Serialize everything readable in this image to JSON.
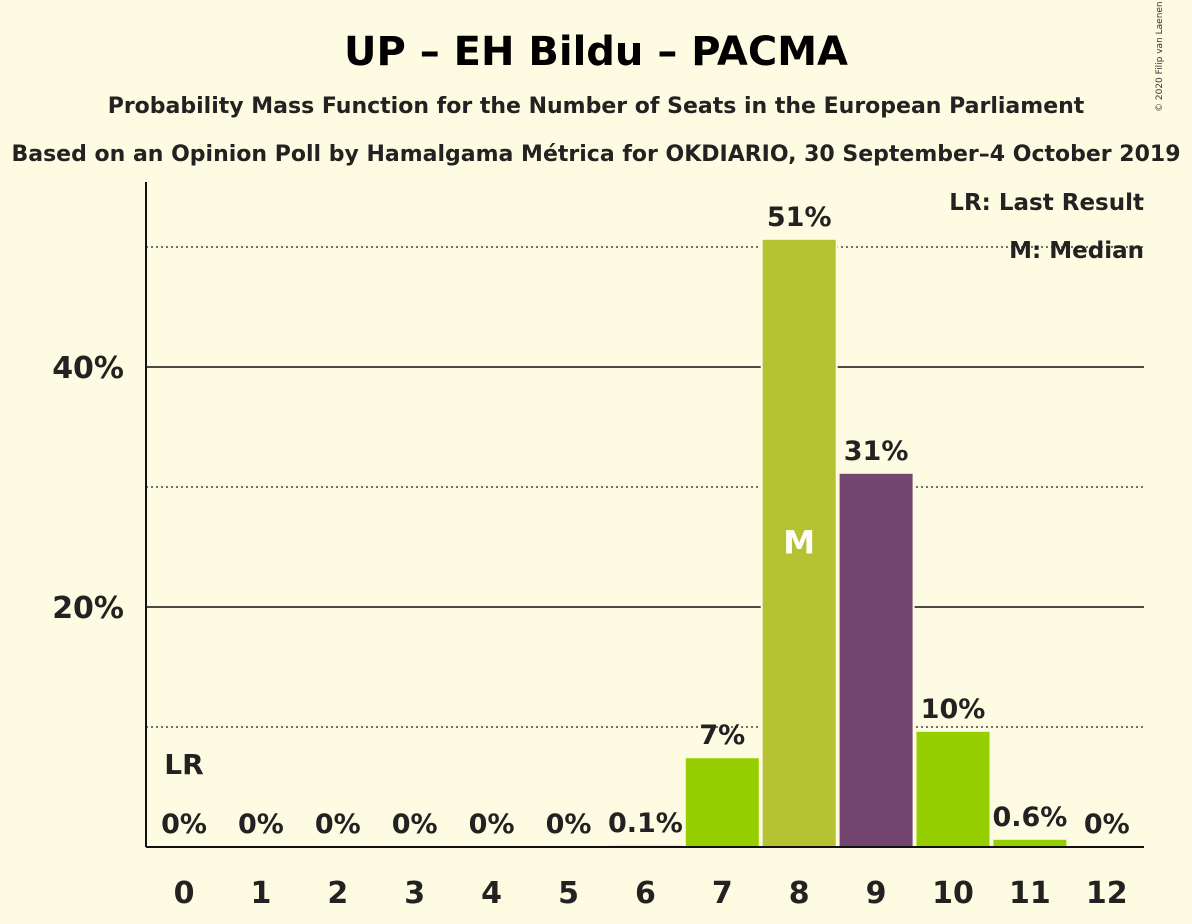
{
  "chart_data": {
    "type": "bar",
    "title": "UP – EH Bildu – PACMA",
    "subtitle": "Probability Mass Function for the Number of Seats in the European Parliament",
    "source": "Based on an Opinion Poll by Hamalgama Métrica for OKDIARIO, 30 September–4 October 2019",
    "copyright": "© 2020 Filip van Laenen",
    "categories": [
      "0",
      "1",
      "2",
      "3",
      "4",
      "5",
      "6",
      "7",
      "8",
      "9",
      "10",
      "11",
      "12"
    ],
    "values": [
      0,
      0,
      0,
      0,
      0,
      0,
      0.1,
      7.4,
      50.6,
      31.1,
      9.6,
      0.6,
      0
    ],
    "labels": [
      "0%",
      "0%",
      "0%",
      "0%",
      "0%",
      "0%",
      "0.1%",
      "7%",
      "51%",
      "31%",
      "10%",
      "0.6%",
      "0%"
    ],
    "bar_colors": [
      "#95cf00",
      "#95cf00",
      "#95cf00",
      "#95cf00",
      "#95cf00",
      "#95cf00",
      "#95cf00",
      "#95cf00",
      "#b5c231",
      "#734672",
      "#95cf00",
      "#95cf00",
      "#95cf00"
    ],
    "ylim": [
      0,
      55
    ],
    "y_ticks": [
      20,
      40
    ],
    "y_tick_labels": [
      "20%",
      "40%"
    ],
    "y_minor_gridlines": [
      10,
      30,
      50
    ],
    "median_index": 8,
    "median_mark": "M",
    "last_result_index": 0,
    "last_result_mark": "LR",
    "legend": {
      "placement": "top-right",
      "items": [
        "LR: Last Result",
        "M: Median"
      ]
    }
  }
}
